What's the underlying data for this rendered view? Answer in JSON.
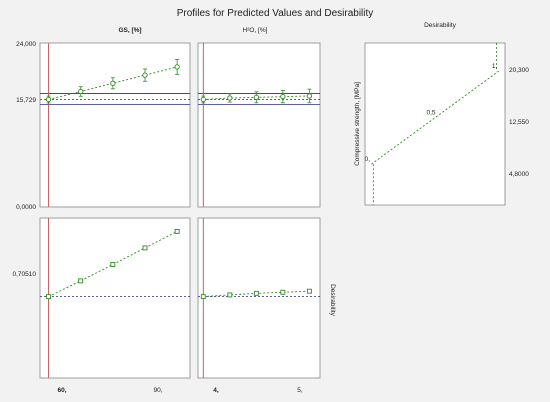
{
  "title": "Profiles for Predicted Values and Desirability",
  "colors": {
    "background": "#f2f2f2",
    "panel": "#ffffff",
    "frame": "#888888",
    "green": "#2e8b22",
    "navy": "#2a2a8a",
    "red": "#c05050"
  },
  "headers": {
    "gs": "GS, [%]",
    "h2o": "H²O, [%]",
    "desirability": "Desirability"
  },
  "y_axes": {
    "top_ticks": [
      "24,000",
      "15,729",
      "0,0000"
    ],
    "bottom_ticks": [
      "0,70510"
    ],
    "bottom_right_label": "Desirability",
    "right_panel_label": "Compressive strength, [MPa]",
    "right_panel_ticks": [
      "20,300",
      "12,550",
      "4,8000"
    ]
  },
  "x_axes": {
    "gs_ticks": [
      "60,",
      "90,"
    ],
    "h2o_ticks": [
      "4,",
      "5,"
    ]
  },
  "chart_data": [
    {
      "type": "line",
      "panel": "strength-vs-gs",
      "x": [
        60,
        67.5,
        75,
        82.5,
        90
      ],
      "y": [
        15.73,
        16.9,
        18.1,
        19.3,
        20.5
      ],
      "err": [
        0.5,
        0.7,
        0.8,
        0.9,
        1.1
      ],
      "xlim": [
        58,
        93
      ],
      "ylim": [
        0,
        24
      ],
      "current_x": 60,
      "current_y": 15.729,
      "ci": [
        15.0,
        16.6
      ]
    },
    {
      "type": "line",
      "panel": "strength-vs-h2o",
      "x": [
        4,
        4.25,
        4.5,
        4.75,
        5.0
      ],
      "y": [
        15.73,
        15.95,
        16.05,
        16.15,
        16.25
      ],
      "err": [
        0.5,
        0.6,
        0.8,
        0.9,
        1.0
      ],
      "xlim": [
        3.95,
        5.1
      ],
      "ylim": [
        0,
        24
      ],
      "current_x": 4,
      "current_y": 15.729,
      "ci": [
        15.0,
        16.6
      ]
    },
    {
      "type": "line",
      "panel": "desirability-vs-gs",
      "x": [
        60,
        67.5,
        75,
        82.5,
        90
      ],
      "y": [
        0.7051,
        0.7643,
        0.8257,
        0.8878,
        0.9497
      ],
      "xlim": [
        58,
        93
      ],
      "ylim": [
        0.4,
        1.0
      ],
      "current_x": 60,
      "current_y": 0.7051
    },
    {
      "type": "line",
      "panel": "desirability-vs-h2o",
      "x": [
        4,
        4.25,
        4.5,
        4.75,
        5.0
      ],
      "y": [
        0.7051,
        0.7115,
        0.7175,
        0.7215,
        0.7255
      ],
      "xlim": [
        3.95,
        5.1
      ],
      "ylim": [
        0.4,
        1.0
      ],
      "current_x": 4,
      "current_y": 0.7051
    },
    {
      "type": "line",
      "panel": "desirability-function",
      "x": [
        0,
        0.5,
        1
      ],
      "y": [
        4.8,
        12.55,
        20.3
      ],
      "point_labels": [
        "0,",
        "0,5",
        "1,"
      ],
      "xlim": [
        -0.05,
        1.05
      ],
      "ylim": [
        -2,
        25
      ]
    }
  ]
}
